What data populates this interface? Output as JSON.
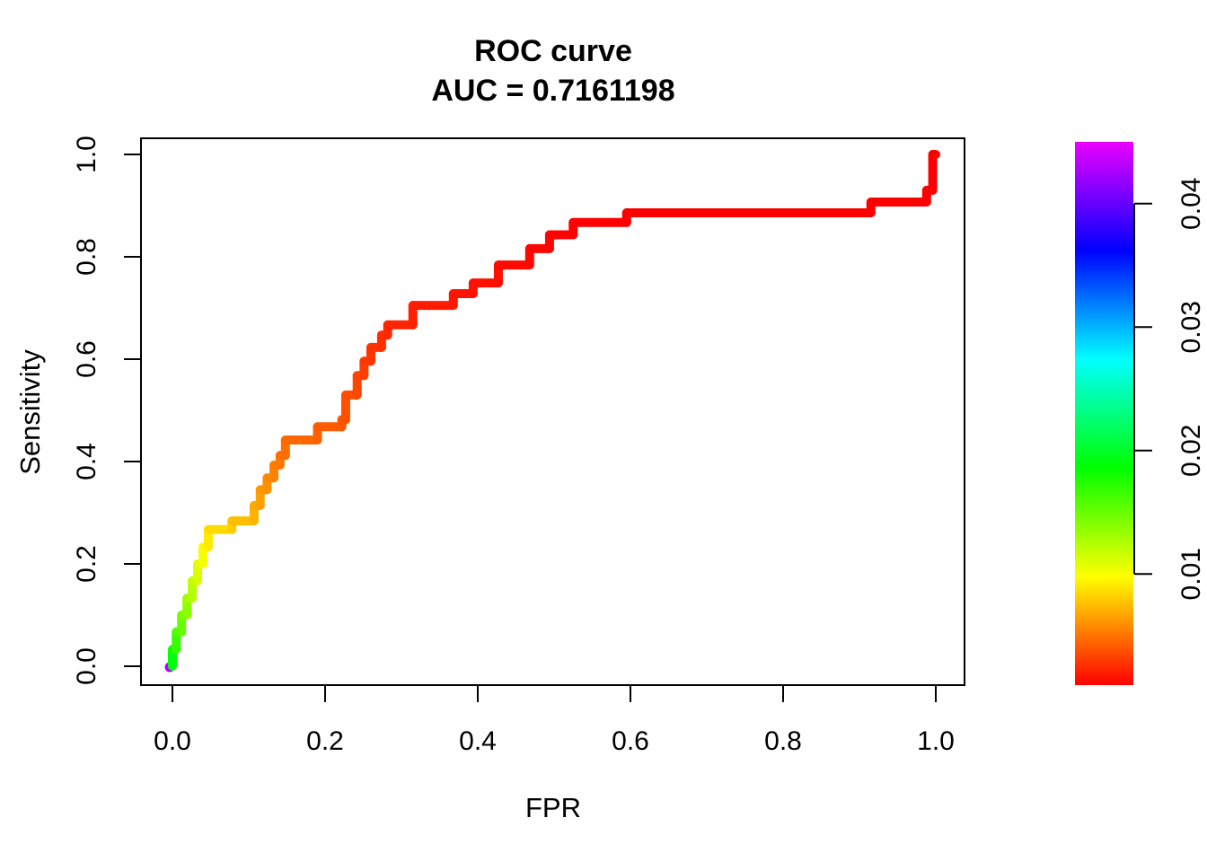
{
  "chart_data": {
    "type": "line",
    "subtype": "roc-step-curve-threshold-colored",
    "title": "ROC curve",
    "subtitle": "AUC = 0.7161198",
    "auc": 0.7161198,
    "xlabel": "FPR",
    "ylabel": "Sensitivity",
    "x_ticks": [
      0.0,
      0.2,
      0.4,
      0.6,
      0.8,
      1.0
    ],
    "x_tick_labels": [
      "0.0",
      "0.2",
      "0.4",
      "0.6",
      "0.8",
      "1.0"
    ],
    "y_ticks": [
      0.0,
      0.2,
      0.4,
      0.6,
      0.8,
      1.0
    ],
    "y_tick_labels": [
      "0.0",
      "0.2",
      "0.4",
      "0.6",
      "0.8",
      "1.0"
    ],
    "xlim": [
      -0.04,
      1.04
    ],
    "ylim": [
      -0.04,
      1.04
    ],
    "grid": false,
    "curve_color_low": "#ff0000",
    "curve_color_high": "#ea00ff",
    "origin_point": {
      "x": 0.0,
      "y": 0.0,
      "threshold": 0.043
    },
    "curve_points": [
      [
        0.0,
        0.0,
        0.02
      ],
      [
        0.0,
        0.033,
        0.0185
      ],
      [
        0.005,
        0.033,
        0.0175
      ],
      [
        0.005,
        0.067,
        0.0165
      ],
      [
        0.012,
        0.067,
        0.0157
      ],
      [
        0.012,
        0.1,
        0.015
      ],
      [
        0.019,
        0.1,
        0.0143
      ],
      [
        0.019,
        0.133,
        0.0136
      ],
      [
        0.026,
        0.133,
        0.0129
      ],
      [
        0.026,
        0.167,
        0.0122
      ],
      [
        0.033,
        0.167,
        0.0116
      ],
      [
        0.033,
        0.2,
        0.011
      ],
      [
        0.04,
        0.2,
        0.0105
      ],
      [
        0.04,
        0.233,
        0.01
      ],
      [
        0.047,
        0.233,
        0.0095
      ],
      [
        0.047,
        0.267,
        0.009
      ],
      [
        0.078,
        0.267,
        0.0084
      ],
      [
        0.078,
        0.284,
        0.0079
      ],
      [
        0.107,
        0.284,
        0.0075
      ],
      [
        0.107,
        0.314,
        0.0071
      ],
      [
        0.115,
        0.314,
        0.0068
      ],
      [
        0.115,
        0.345,
        0.0065
      ],
      [
        0.124,
        0.345,
        0.0062
      ],
      [
        0.124,
        0.368,
        0.0059
      ],
      [
        0.133,
        0.368,
        0.0057
      ],
      [
        0.133,
        0.393,
        0.0055
      ],
      [
        0.141,
        0.393,
        0.0053
      ],
      [
        0.141,
        0.412,
        0.0051
      ],
      [
        0.148,
        0.412,
        0.0049
      ],
      [
        0.148,
        0.442,
        0.0047
      ],
      [
        0.19,
        0.442,
        0.0045
      ],
      [
        0.19,
        0.468,
        0.0043
      ],
      [
        0.222,
        0.468,
        0.0041
      ],
      [
        0.222,
        0.482,
        0.004
      ],
      [
        0.227,
        0.482,
        0.0039
      ],
      [
        0.227,
        0.53,
        0.0037
      ],
      [
        0.242,
        0.53,
        0.0036
      ],
      [
        0.242,
        0.568,
        0.0034
      ],
      [
        0.251,
        0.568,
        0.0033
      ],
      [
        0.251,
        0.596,
        0.0031
      ],
      [
        0.26,
        0.596,
        0.003
      ],
      [
        0.26,
        0.623,
        0.0028
      ],
      [
        0.274,
        0.623,
        0.0027
      ],
      [
        0.274,
        0.647,
        0.0026
      ],
      [
        0.282,
        0.647,
        0.0025
      ],
      [
        0.282,
        0.667,
        0.0024
      ],
      [
        0.315,
        0.667,
        0.0022
      ],
      [
        0.315,
        0.705,
        0.0021
      ],
      [
        0.368,
        0.705,
        0.0019
      ],
      [
        0.368,
        0.728,
        0.0018
      ],
      [
        0.394,
        0.728,
        0.0017
      ],
      [
        0.394,
        0.749,
        0.0016
      ],
      [
        0.427,
        0.749,
        0.0015
      ],
      [
        0.427,
        0.784,
        0.0014
      ],
      [
        0.468,
        0.784,
        0.0013
      ],
      [
        0.468,
        0.816,
        0.0012
      ],
      [
        0.494,
        0.816,
        0.0011
      ],
      [
        0.494,
        0.843,
        0.0011
      ],
      [
        0.525,
        0.843,
        0.001
      ],
      [
        0.525,
        0.867,
        0.0009
      ],
      [
        0.595,
        0.867,
        0.0008
      ],
      [
        0.595,
        0.886,
        0.0007
      ],
      [
        0.915,
        0.886,
        0.0006
      ],
      [
        0.915,
        0.907,
        0.0005
      ],
      [
        0.988,
        0.907,
        0.0004
      ],
      [
        0.988,
        0.93,
        0.0003
      ],
      [
        0.996,
        0.93,
        0.0002
      ],
      [
        0.996,
        1.0,
        0.0001
      ],
      [
        1.0,
        1.0,
        0.0001
      ]
    ],
    "colorbar": {
      "min": 0.001,
      "max": 0.045,
      "ticks": [
        0.01,
        0.02,
        0.03,
        0.04
      ],
      "tick_labels": [
        "0.01",
        "0.02",
        "0.03",
        "0.04"
      ],
      "palette": [
        "#ff0000",
        "#ffff00",
        "#00ff00",
        "#00ffff",
        "#0000ff",
        "#ea00ff"
      ],
      "legend_position": "right"
    }
  }
}
